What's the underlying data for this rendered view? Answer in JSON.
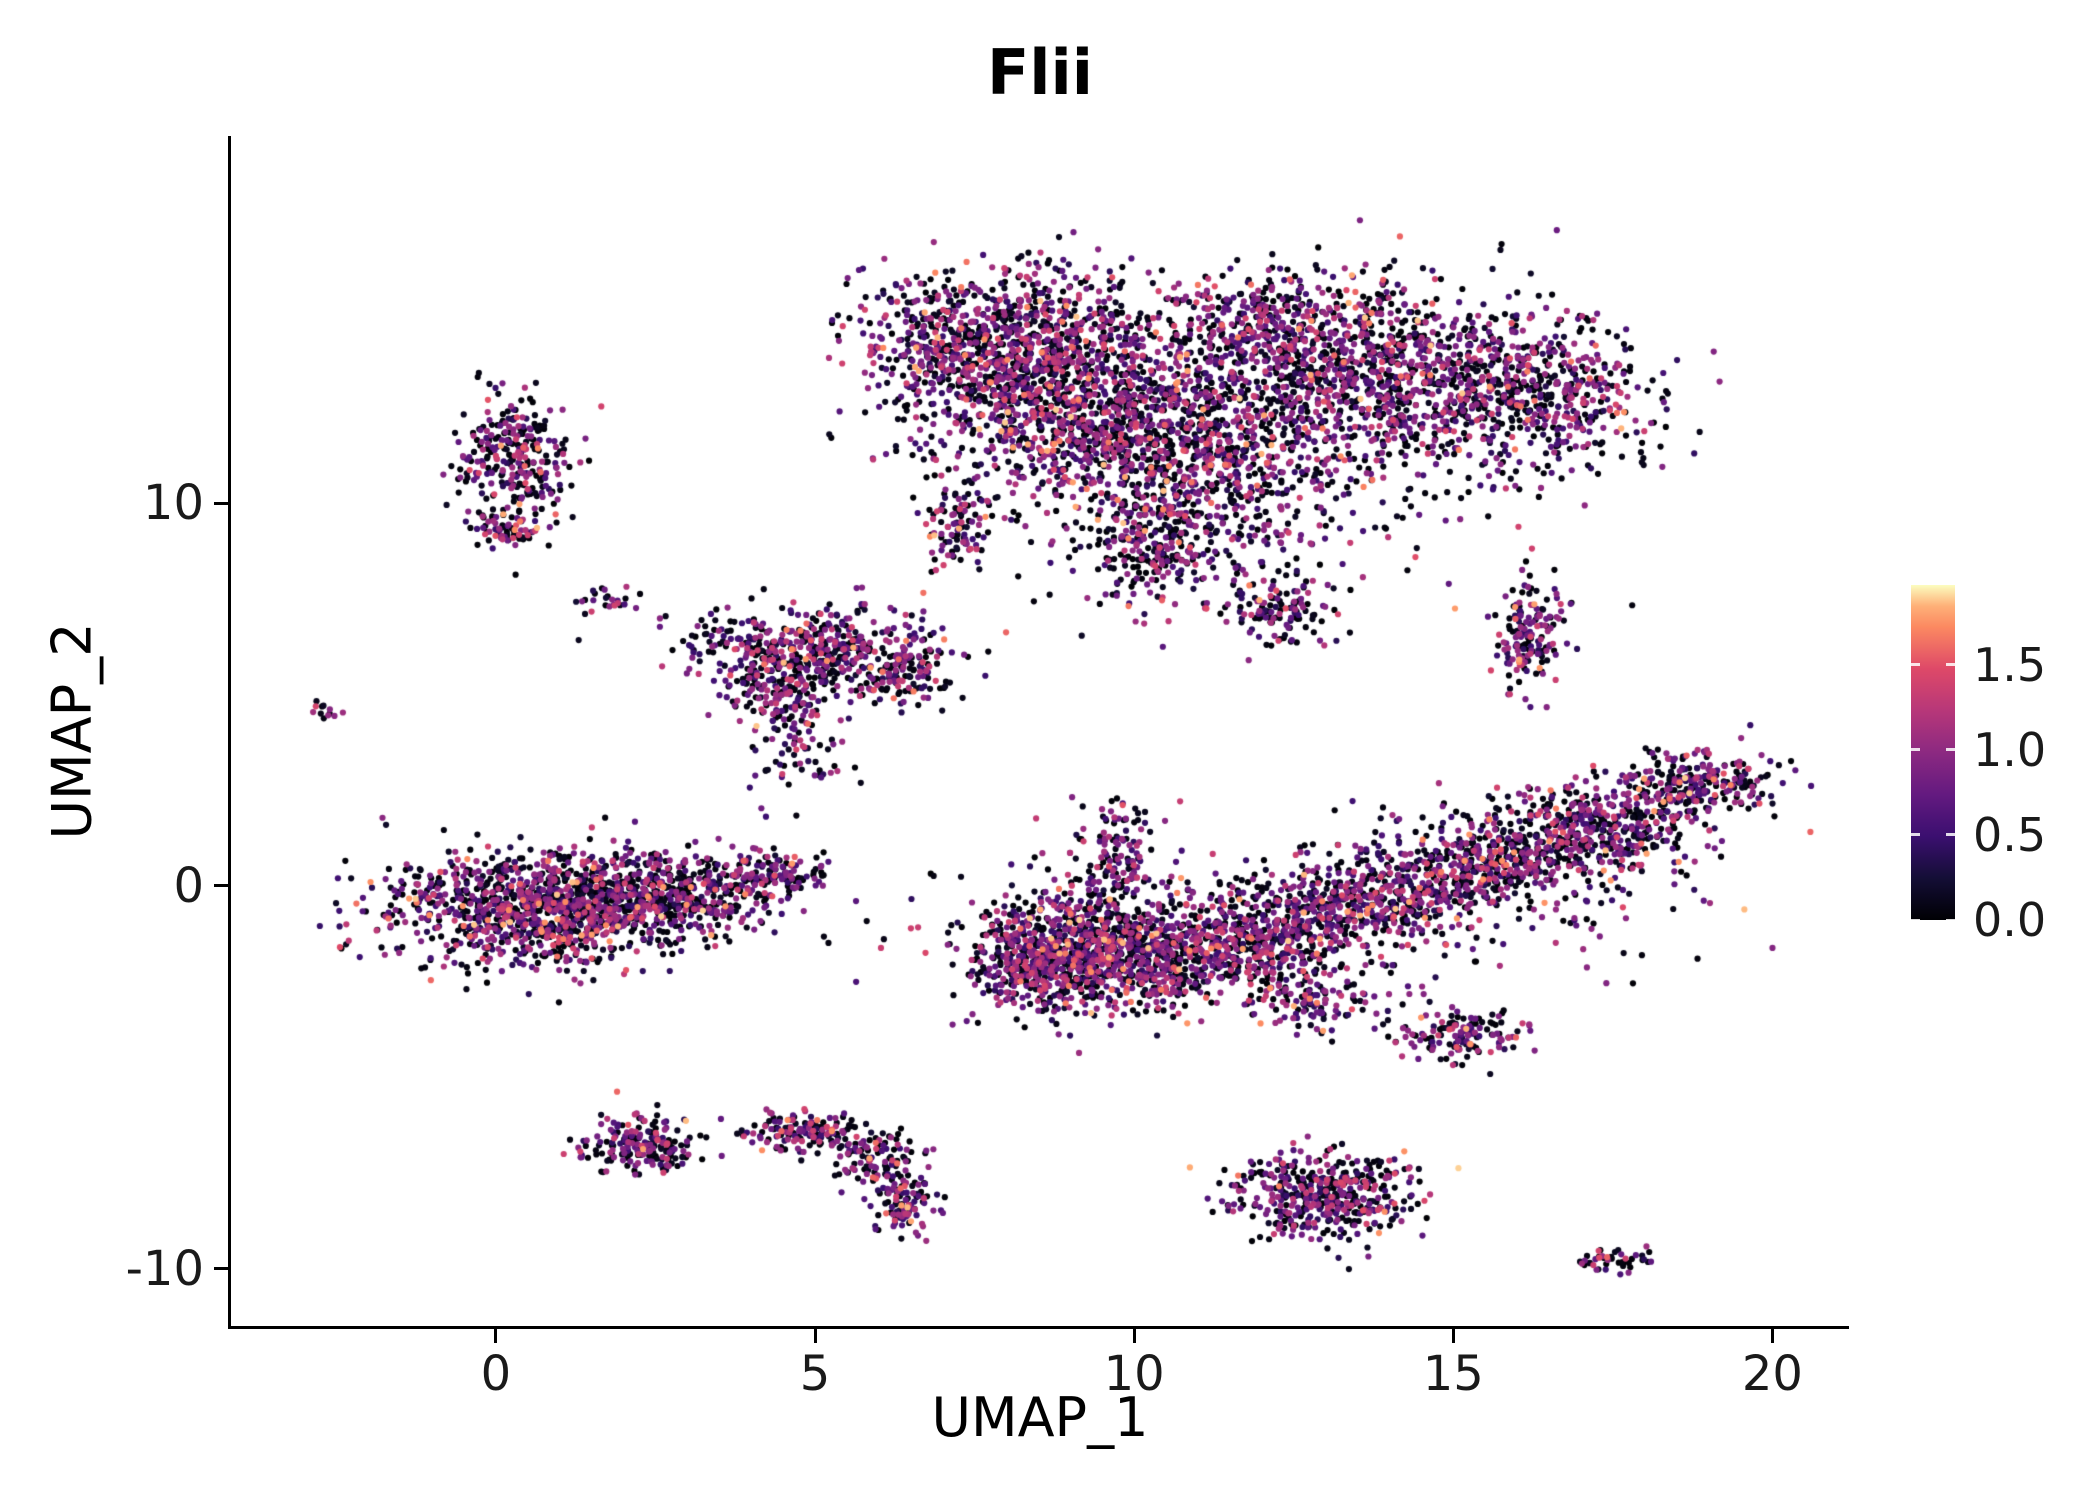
{
  "title": "Flii",
  "axes": {
    "x": {
      "label": "UMAP_1",
      "ticks": [
        0,
        5,
        10,
        15,
        20
      ],
      "range": [
        -4.15,
        21.2
      ]
    },
    "y": {
      "label": "UMAP_2",
      "ticks": [
        -10,
        0,
        10
      ],
      "range": [
        -11.5,
        19.6
      ]
    }
  },
  "colorbar": {
    "range": [
      0,
      1.97
    ],
    "ticks": [
      {
        "value": 0.0,
        "label": "0.0"
      },
      {
        "value": 0.5,
        "label": "0.5"
      },
      {
        "value": 1.0,
        "label": "1.0"
      },
      {
        "value": 1.5,
        "label": "1.5"
      }
    ]
  },
  "colormap": [
    {
      "t": 0.0,
      "color": "#000004"
    },
    {
      "t": 0.125,
      "color": "#140e36"
    },
    {
      "t": 0.25,
      "color": "#3b0f70"
    },
    {
      "t": 0.375,
      "color": "#641a80"
    },
    {
      "t": 0.5,
      "color": "#8c2981"
    },
    {
      "t": 0.625,
      "color": "#b73779"
    },
    {
      "t": 0.75,
      "color": "#de4968"
    },
    {
      "t": 0.875,
      "color": "#fc8961"
    },
    {
      "t": 0.9375,
      "color": "#feb078"
    },
    {
      "t": 1.0,
      "color": "#fcfdbf"
    }
  ],
  "chart_data": {
    "type": "scatter",
    "title": "Flii",
    "xlabel": "UMAP_1",
    "ylabel": "UMAP_2",
    "xlim": [
      -4.15,
      21.2
    ],
    "ylim": [
      -11.5,
      19.6
    ],
    "legend_title": "expression",
    "point_radius": 3.1,
    "seed": 42,
    "expression_distribution": {
      "p_zero": 0.45,
      "p_low": 0.35,
      "low_range": [
        0.35,
        1.1
      ],
      "p_mid": 0.15,
      "mid_range": [
        0.9,
        1.4
      ],
      "p_high": 0.05,
      "high_range": [
        1.3,
        1.9
      ]
    },
    "clusters": [
      {
        "cx": 7.8,
        "cy": 14.2,
        "sx": 1.1,
        "sy": 1.0,
        "n": 900
      },
      {
        "cx": 9.3,
        "cy": 12.3,
        "sx": 1.3,
        "sy": 1.2,
        "n": 1000
      },
      {
        "cx": 11.0,
        "cy": 10.5,
        "sx": 1.0,
        "sy": 1.2,
        "n": 500
      },
      {
        "cx": 13.8,
        "cy": 13.2,
        "sx": 1.6,
        "sy": 1.2,
        "n": 1100
      },
      {
        "cx": 16.3,
        "cy": 12.8,
        "sx": 0.9,
        "sy": 0.9,
        "n": 400
      },
      {
        "cx": 12.3,
        "cy": 14.8,
        "sx": 1.2,
        "sy": 0.7,
        "n": 350
      },
      {
        "cx": 11.5,
        "cy": 11.5,
        "sx": 2.5,
        "sy": 2.0,
        "n": 300
      },
      {
        "cx": 10.3,
        "cy": 8.6,
        "sx": 0.5,
        "sy": 0.7,
        "n": 180
      },
      {
        "cx": 7.2,
        "cy": 9.3,
        "sx": 0.25,
        "sy": 0.5,
        "n": 90
      },
      {
        "cx": 12.2,
        "cy": 7.2,
        "sx": 0.4,
        "sy": 0.5,
        "n": 120
      },
      {
        "cx": 0.3,
        "cy": 11.2,
        "sx": 0.45,
        "sy": 0.8,
        "n": 280
      },
      {
        "cx": 0.2,
        "cy": 9.3,
        "sx": 0.3,
        "sy": 0.3,
        "n": 70
      },
      {
        "cx": -2.7,
        "cy": 4.6,
        "sx": 0.12,
        "sy": 0.15,
        "n": 12
      },
      {
        "cx": 1.7,
        "cy": 7.4,
        "sx": 0.25,
        "sy": 0.2,
        "n": 25
      },
      {
        "cx": 5.0,
        "cy": 6.2,
        "sx": 1.0,
        "sy": 0.55,
        "n": 450
      },
      {
        "cx": 4.4,
        "cy": 5.0,
        "sx": 0.45,
        "sy": 0.6,
        "n": 150
      },
      {
        "cx": 4.8,
        "cy": 3.4,
        "sx": 0.4,
        "sy": 0.7,
        "n": 60
      },
      {
        "cx": 6.4,
        "cy": 5.6,
        "sx": 0.4,
        "sy": 0.5,
        "n": 120
      },
      {
        "cx": 0.8,
        "cy": -0.6,
        "sx": 1.2,
        "sy": 0.75,
        "n": 1200
      },
      {
        "cx": 3.0,
        "cy": -0.2,
        "sx": 0.8,
        "sy": 0.5,
        "n": 350
      },
      {
        "cx": 4.4,
        "cy": 0.3,
        "sx": 0.4,
        "sy": 0.3,
        "n": 120
      },
      {
        "cx": 2.3,
        "cy": -6.8,
        "sx": 0.45,
        "sy": 0.4,
        "n": 200
      },
      {
        "cx": 4.8,
        "cy": -6.4,
        "sx": 0.5,
        "sy": 0.3,
        "n": 130
      },
      {
        "cx": 5.9,
        "cy": -7.0,
        "sx": 0.35,
        "sy": 0.4,
        "n": 110
      },
      {
        "cx": 6.4,
        "cy": -8.2,
        "sx": 0.25,
        "sy": 0.5,
        "n": 110
      },
      {
        "cx": 9.0,
        "cy": -1.6,
        "sx": 0.8,
        "sy": 0.8,
        "n": 700
      },
      {
        "cx": 8.3,
        "cy": -2.2,
        "sx": 0.4,
        "sy": 0.5,
        "n": 150
      },
      {
        "cx": 10.5,
        "cy": -1.9,
        "sx": 0.8,
        "sy": 0.6,
        "n": 450
      },
      {
        "cx": 12.2,
        "cy": -1.2,
        "sx": 0.9,
        "sy": 0.6,
        "n": 450
      },
      {
        "cx": 13.8,
        "cy": -0.3,
        "sx": 0.9,
        "sy": 0.5,
        "n": 350
      },
      {
        "cx": 15.5,
        "cy": 0.6,
        "sx": 1.0,
        "sy": 0.6,
        "n": 450
      },
      {
        "cx": 17.3,
        "cy": 1.6,
        "sx": 0.9,
        "sy": 0.55,
        "n": 400
      },
      {
        "cx": 18.8,
        "cy": 2.7,
        "sx": 0.6,
        "sy": 0.4,
        "n": 250
      },
      {
        "cx": 12.5,
        "cy": -1.0,
        "sx": 3.0,
        "sy": 1.2,
        "n": 250
      },
      {
        "cx": 9.7,
        "cy": 0.9,
        "sx": 0.35,
        "sy": 0.7,
        "n": 130
      },
      {
        "cx": 12.8,
        "cy": -3.0,
        "sx": 0.5,
        "sy": 0.4,
        "n": 130
      },
      {
        "cx": 15.1,
        "cy": -3.9,
        "sx": 0.55,
        "sy": 0.35,
        "n": 140
      },
      {
        "cx": 13.0,
        "cy": -8.1,
        "sx": 0.7,
        "sy": 0.55,
        "n": 450
      },
      {
        "cx": 17.5,
        "cy": -9.8,
        "sx": 0.3,
        "sy": 0.15,
        "n": 45
      },
      {
        "cx": 16.2,
        "cy": 6.6,
        "sx": 0.28,
        "sy": 0.75,
        "n": 170
      }
    ]
  }
}
